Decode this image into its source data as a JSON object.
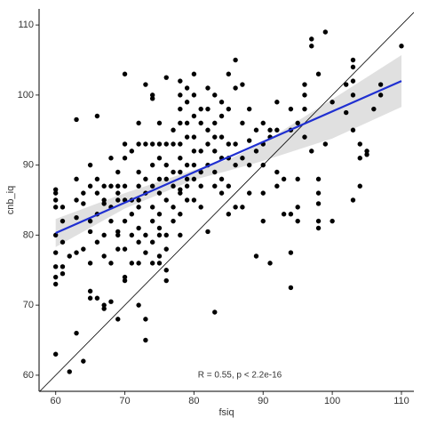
{
  "chart_data": {
    "type": "scatter",
    "x_label": "fsiq",
    "y_label": "cnb_iq",
    "annotation": "R = 0.55, p < 2.2e-16",
    "xlim": [
      57.6,
      111.8
    ],
    "ylim": [
      57.7,
      112.3
    ],
    "xticks": [
      60,
      70,
      80,
      90,
      100,
      110
    ],
    "yticks": [
      60,
      70,
      80,
      90,
      100,
      110
    ],
    "point_color": "#000000",
    "fit_color": "#1f2fd1",
    "band_color": "#d3d3d3",
    "identity_color": "#000000",
    "x": [
      60,
      60,
      60,
      60,
      60,
      60,
      60,
      60,
      60,
      60,
      61,
      61,
      61,
      61,
      61,
      62,
      62,
      63,
      63,
      63,
      63,
      63,
      63,
      64,
      64,
      64,
      64,
      65,
      65,
      65,
      65,
      65,
      65,
      65,
      66,
      66,
      66,
      66,
      66,
      66,
      67,
      67,
      67,
      67,
      67,
      67,
      67,
      68,
      68,
      68,
      68,
      68,
      68,
      69,
      69,
      69,
      69,
      69,
      69,
      69,
      69,
      70,
      70,
      70,
      70,
      70,
      70,
      70,
      70,
      70,
      71,
      71,
      71,
      71,
      71,
      72,
      72,
      72,
      72,
      72,
      72,
      72,
      72,
      72,
      72,
      73,
      73,
      73,
      73,
      73,
      73,
      73,
      73,
      74,
      74,
      74,
      74,
      74,
      74,
      74,
      74,
      74,
      75,
      75,
      75,
      75,
      75,
      75,
      75,
      75,
      75,
      75,
      76,
      76,
      76,
      76,
      76,
      76,
      76,
      76,
      76,
      77,
      77,
      77,
      77,
      77,
      77,
      78,
      78,
      78,
      78,
      78,
      78,
      78,
      78,
      78,
      78,
      78,
      79,
      79,
      79,
      79,
      79,
      79,
      79,
      79,
      80,
      80,
      80,
      80,
      80,
      80,
      80,
      80,
      81,
      81,
      81,
      81,
      81,
      81,
      82,
      82,
      82,
      82,
      82,
      82,
      83,
      83,
      83,
      83,
      83,
      83,
      83,
      84,
      84,
      84,
      84,
      84,
      84,
      85,
      85,
      85,
      85,
      85,
      85,
      86,
      86,
      86,
      86,
      86,
      87,
      87,
      87,
      87,
      88,
      88,
      88,
      88,
      89,
      89,
      89,
      90,
      90,
      90,
      90,
      90,
      91,
      91,
      91,
      92,
      92,
      92,
      92,
      93,
      93,
      94,
      94,
      94,
      94,
      94,
      95,
      95,
      95,
      95,
      96,
      96,
      96,
      96,
      97,
      97,
      97,
      98,
      98,
      98,
      98,
      98,
      98,
      99,
      99,
      100,
      100,
      102,
      102,
      103,
      103,
      103,
      103,
      103,
      103,
      104,
      104,
      104,
      105,
      105,
      106,
      107,
      107,
      110
    ],
    "y": [
      86.5,
      86,
      85,
      84,
      80,
      77.5,
      75.5,
      74,
      73,
      63,
      84,
      82,
      79,
      75.5,
      74.5,
      60.5,
      77,
      88,
      85,
      82.5,
      77.5,
      66,
      96.5,
      62,
      86,
      84.5,
      78,
      90,
      87,
      82,
      80.5,
      76,
      71,
      72,
      97,
      88,
      86,
      83,
      79,
      71,
      87,
      85,
      84.5,
      80,
      77,
      69.5,
      70,
      91,
      87,
      84,
      82,
      76,
      70.5,
      89,
      87,
      86,
      85,
      80,
      78,
      68,
      80.5,
      103,
      93,
      91,
      87,
      85,
      82,
      78,
      74,
      73.5,
      92,
      85,
      83,
      80,
      76,
      96,
      93,
      89,
      87,
      84,
      81,
      79,
      76,
      70,
      85,
      101.5,
      93,
      86,
      80,
      77.5,
      68,
      65,
      88,
      100,
      99.5,
      93,
      90,
      87,
      84,
      82,
      79,
      76,
      96,
      93,
      91,
      88,
      86,
      83,
      80,
      76,
      77,
      81,
      102.5,
      93,
      90,
      88,
      85,
      80,
      75,
      73.5,
      78,
      95,
      93,
      89,
      87,
      84,
      82,
      102,
      100,
      98,
      96,
      93,
      91,
      89,
      86,
      83,
      80,
      86.5,
      101,
      99,
      96,
      94,
      90,
      87,
      85,
      88,
      103,
      100,
      97,
      94,
      92,
      90,
      88,
      85,
      98,
      96,
      92,
      89,
      87,
      84,
      101,
      98,
      95,
      93,
      90,
      80.5,
      100,
      96,
      94,
      92,
      89,
      87,
      69,
      99,
      97,
      94,
      91,
      88,
      86,
      103,
      98,
      93,
      91,
      83,
      87,
      105,
      101,
      93,
      90,
      84,
      101.5,
      96,
      91,
      84,
      98,
      93.5,
      90,
      86,
      95,
      92,
      77,
      96,
      93,
      90,
      86,
      82,
      95,
      94,
      76,
      99,
      95,
      89,
      87,
      83,
      88,
      95,
      83,
      77.5,
      72.5,
      98,
      96,
      88,
      84,
      82,
      101.5,
      100,
      98,
      94,
      108,
      107,
      92,
      103,
      88,
      86,
      82,
      81,
      84.5,
      109,
      93,
      99,
      82,
      97.5,
      101.5,
      105,
      104,
      102,
      100,
      95,
      85,
      93,
      91,
      87,
      92,
      91.5,
      98,
      101.5,
      100,
      107
    ],
    "fit": {
      "x": [
        60,
        110
      ],
      "y": [
        80.3,
        102
      ]
    },
    "band": {
      "x": [
        60,
        70,
        80,
        85,
        90,
        100,
        110
      ],
      "lower": [
        78.3,
        83.8,
        87.9,
        89.2,
        90.6,
        93.8,
        98.3
      ],
      "upper": [
        82.3,
        86.0,
        89.3,
        90.8,
        93.2,
        99.4,
        105.7
      ]
    }
  }
}
